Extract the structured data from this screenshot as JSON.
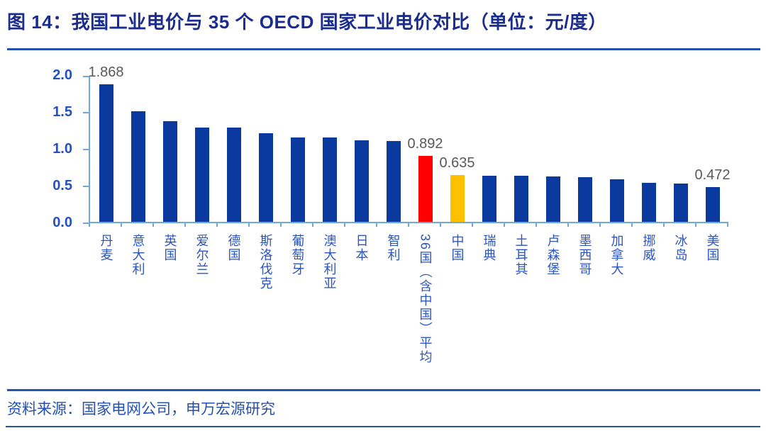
{
  "header": {
    "title": "图 14：我国工业电价与 35 个 OECD 国家工业电价对比（单位：元/度）"
  },
  "footer": {
    "source": "资料来源：国家电网公司，申万宏源研究"
  },
  "colors": {
    "title": "#1A2C8E",
    "divider": "#2254A8",
    "axis": "#6FA8DC",
    "tick_label": "#2451C0",
    "category_label": "#2B55C0",
    "value_label": "#595959",
    "source_text": "#2450AE",
    "bar_default": "#0A3A9E",
    "bar_highlight_red": "#FF0000",
    "bar_highlight_gold": "#FFC000"
  },
  "chart_data": {
    "type": "bar",
    "title": "我国工业电价与 35 个 OECD 国家工业电价对比",
    "unit": "元/度",
    "xlabel": "",
    "ylabel": "",
    "ylim": [
      0,
      2.0
    ],
    "ytick_labels_top_to_bottom": [
      "2.0",
      "1.5",
      "1.0",
      "0.5",
      "0.0"
    ],
    "grid": false,
    "legend": "none",
    "bars": [
      {
        "label": "丹麦",
        "value": 1.868,
        "color": "navy",
        "value_label": "1.868"
      },
      {
        "label": "意大利",
        "value": 1.5,
        "color": "navy"
      },
      {
        "label": "英国",
        "value": 1.37,
        "color": "navy"
      },
      {
        "label": "爱尔兰",
        "value": 1.28,
        "color": "navy"
      },
      {
        "label": "德国",
        "value": 1.28,
        "color": "navy"
      },
      {
        "label": "斯洛伐克",
        "value": 1.2,
        "color": "navy"
      },
      {
        "label": "葡萄牙",
        "value": 1.14,
        "color": "navy"
      },
      {
        "label": "澳大利亚",
        "value": 1.14,
        "color": "navy"
      },
      {
        "label": "日本",
        "value": 1.11,
        "color": "navy"
      },
      {
        "label": "智利",
        "value": 1.1,
        "color": "navy"
      },
      {
        "label": "36国（含中国）平均",
        "value": 0.892,
        "color": "red",
        "value_label": "0.892"
      },
      {
        "label": "中国",
        "value": 0.635,
        "color": "gold",
        "value_label": "0.635"
      },
      {
        "label": "瑞典",
        "value": 0.63,
        "color": "navy"
      },
      {
        "label": "土耳其",
        "value": 0.63,
        "color": "navy"
      },
      {
        "label": "卢森堡",
        "value": 0.62,
        "color": "navy"
      },
      {
        "label": "墨西哥",
        "value": 0.61,
        "color": "navy"
      },
      {
        "label": "加拿大",
        "value": 0.58,
        "color": "navy"
      },
      {
        "label": "挪威",
        "value": 0.53,
        "color": "navy"
      },
      {
        "label": "冰岛",
        "value": 0.52,
        "color": "navy"
      },
      {
        "label": "美国",
        "value": 0.472,
        "color": "navy",
        "value_label": "0.472"
      }
    ]
  }
}
